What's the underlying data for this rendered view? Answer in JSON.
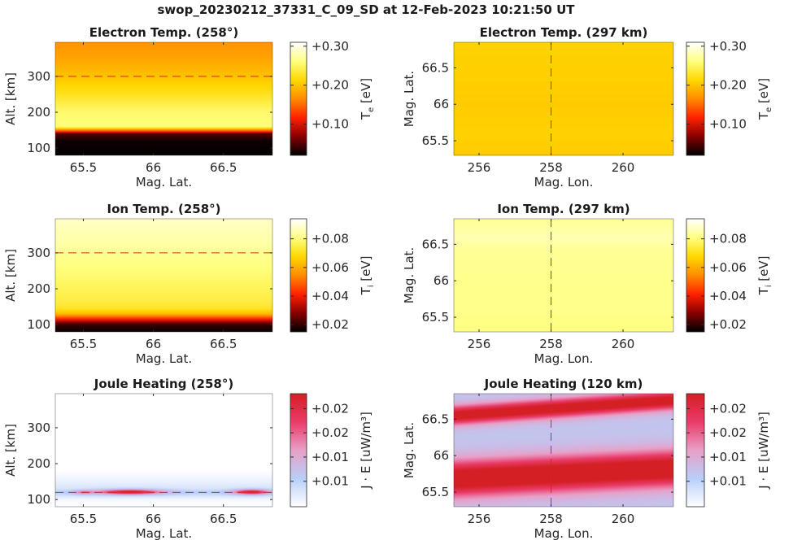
{
  "figure_title": "swop_20230212_37331_C_09_SD at 12-Feb-2023 10:21:50 UT",
  "colors": {
    "hot": [
      "#000000",
      "#8b0000",
      "#ff2200",
      "#ff8c00",
      "#ffd800",
      "#ffff80",
      "#ffffff"
    ],
    "joule": [
      "#ffffff",
      "#b8cff9",
      "#e8a0c8",
      "#ea3c6a",
      "#d41f24"
    ],
    "dashed_line": "#d62728",
    "axes": "#262626"
  },
  "chart_data": [
    {
      "id": "te-alt",
      "type": "heatmap",
      "title": "Electron Temp. (258°)",
      "xlabel": "Mag. Lat.",
      "ylabel": "Alt. [km]",
      "xlim": [
        65.3,
        66.85
      ],
      "ylim": [
        80,
        395
      ],
      "xticks": [
        65.5,
        66,
        66.5
      ],
      "xtick_labels": [
        "65.5",
        "66",
        "66.5"
      ],
      "yticks": [
        100,
        200,
        300
      ],
      "ytick_labels": [
        "100",
        "200",
        "300"
      ],
      "dashed_line": {
        "axis": "y",
        "value": 300
      },
      "colorbar": {
        "label_main": "T",
        "label_sub": "e",
        "label_unit": "[eV]",
        "range": [
          0.02,
          0.31
        ],
        "ticks": [
          0.1,
          0.2,
          0.3
        ],
        "tick_labels": [
          "+0.10",
          "+0.20",
          "+0.30"
        ],
        "cmap": "hot"
      },
      "rows": {
        "axis": "y",
        "coords": [
          80,
          120,
          140,
          150,
          160,
          200,
          250,
          300,
          350,
          395
        ],
        "values": [
          0.02,
          0.025,
          0.05,
          0.16,
          0.26,
          0.255,
          0.225,
          0.2,
          0.18,
          0.17
        ]
      }
    },
    {
      "id": "te-map",
      "type": "heatmap",
      "title": "Electron Temp. (297 km)",
      "xlabel": "Mag. Lon.",
      "ylabel": "Mag. Lat.",
      "xlim": [
        255.3,
        261.4
      ],
      "ylim": [
        65.3,
        66.85
      ],
      "xticks": [
        256,
        258,
        260
      ],
      "xtick_labels": [
        "256",
        "258",
        "260"
      ],
      "yticks": [
        65.5,
        66,
        66.5
      ],
      "ytick_labels": [
        "65.5",
        "66",
        "66.5"
      ],
      "dashed_line": {
        "axis": "x",
        "value": 258
      },
      "colorbar": {
        "label_main": "T",
        "label_sub": "e",
        "label_unit": "[eV]",
        "range": [
          0.02,
          0.31
        ],
        "ticks": [
          0.1,
          0.2,
          0.3
        ],
        "tick_labels": [
          "+0.10",
          "+0.20",
          "+0.30"
        ],
        "cmap": "hot"
      },
      "rows": {
        "axis": "y",
        "coords": [
          65.3,
          65.6,
          66.0,
          66.4,
          66.85
        ],
        "values": [
          0.205,
          0.21,
          0.205,
          0.208,
          0.21
        ]
      }
    },
    {
      "id": "ti-alt",
      "type": "heatmap",
      "title": "Ion Temp. (258°)",
      "xlabel": "Mag. Lat.",
      "ylabel": "Alt. [km]",
      "xlim": [
        65.3,
        66.85
      ],
      "ylim": [
        80,
        395
      ],
      "xticks": [
        65.5,
        66,
        66.5
      ],
      "xtick_labels": [
        "65.5",
        "66",
        "66.5"
      ],
      "yticks": [
        100,
        200,
        300
      ],
      "ytick_labels": [
        "100",
        "200",
        "300"
      ],
      "dashed_line": {
        "axis": "y",
        "value": 300
      },
      "colorbar": {
        "label_main": "T",
        "label_sub": "i",
        "label_unit": "[eV]",
        "range": [
          0.015,
          0.094
        ],
        "ticks": [
          0.02,
          0.04,
          0.06,
          0.08
        ],
        "tick_labels": [
          "+0.02",
          "+0.04",
          "+0.06",
          "+0.08"
        ],
        "cmap": "hot"
      },
      "rows": {
        "axis": "y",
        "coords": [
          80,
          100,
          115,
          130,
          145,
          160,
          200,
          250,
          300,
          350,
          395
        ],
        "values": [
          0.016,
          0.02,
          0.04,
          0.062,
          0.072,
          0.074,
          0.077,
          0.08,
          0.083,
          0.086,
          0.088
        ]
      }
    },
    {
      "id": "ti-map",
      "type": "heatmap",
      "title": "Ion Temp. (297 km)",
      "xlabel": "Mag. Lon.",
      "ylabel": "Mag. Lat.",
      "xlim": [
        255.3,
        261.4
      ],
      "ylim": [
        65.3,
        66.85
      ],
      "xticks": [
        256,
        258,
        260
      ],
      "xtick_labels": [
        "256",
        "258",
        "260"
      ],
      "yticks": [
        65.5,
        66,
        66.5
      ],
      "ytick_labels": [
        "65.5",
        "66",
        "66.5"
      ],
      "dashed_line": {
        "axis": "x",
        "value": 258
      },
      "colorbar": {
        "label_main": "T",
        "label_sub": "i",
        "label_unit": "[eV]",
        "range": [
          0.015,
          0.094
        ],
        "ticks": [
          0.02,
          0.04,
          0.06,
          0.08
        ],
        "tick_labels": [
          "+0.02",
          "+0.04",
          "+0.06",
          "+0.08"
        ],
        "cmap": "hot"
      },
      "rows": {
        "axis": "y",
        "coords": [
          65.3,
          65.6,
          66.0,
          66.4,
          66.6,
          66.85
        ],
        "values": [
          0.081,
          0.082,
          0.082,
          0.083,
          0.086,
          0.083
        ]
      }
    },
    {
      "id": "jh-alt",
      "type": "heatmap",
      "title": "Joule Heating (258°)",
      "xlabel": "Mag. Lat.",
      "ylabel": "Alt. [km]",
      "xlim": [
        65.3,
        66.85
      ],
      "ylim": [
        80,
        395
      ],
      "xticks": [
        65.5,
        66,
        66.5
      ],
      "xtick_labels": [
        "65.5",
        "66",
        "66.5"
      ],
      "yticks": [
        100,
        200,
        300
      ],
      "ytick_labels": [
        "100",
        "200",
        "300"
      ],
      "dashed_line": {
        "axis": "y",
        "value": 120
      },
      "colorbar": {
        "label_main": "J · E",
        "label_sub": "",
        "label_unit": "[uW/m³]",
        "range": [
          0.0,
          0.028
        ],
        "ticks": [
          0.0063,
          0.0123,
          0.0183,
          0.0243
        ],
        "tick_labels": [
          "+0.01",
          "+0.01",
          "+0.02",
          "+0.02"
        ],
        "cmap": "joule"
      },
      "rows": {
        "axis": "y",
        "coords": [
          80,
          100,
          110,
          120,
          130,
          150,
          180,
          395
        ],
        "values": [
          0.0,
          0.001,
          0.004,
          0.007,
          0.004,
          0.002,
          0.0,
          0.0
        ]
      },
      "hotspots": [
        {
          "x": 65.83,
          "y": 121,
          "sx": 0.16,
          "sy": 5,
          "amp": 0.022
        },
        {
          "x": 66.7,
          "y": 121,
          "sx": 0.09,
          "sy": 5,
          "amp": 0.021
        },
        {
          "x": 65.5,
          "y": 120,
          "sx": 0.05,
          "sy": 4,
          "amp": 0.009
        }
      ]
    },
    {
      "id": "jh-map",
      "type": "heatmap",
      "title": "Joule Heating (120 km)",
      "xlabel": "Mag. Lon.",
      "ylabel": "Mag. Lat.",
      "xlim": [
        255.3,
        261.4
      ],
      "ylim": [
        65.3,
        66.85
      ],
      "xticks": [
        256,
        258,
        260
      ],
      "xtick_labels": [
        "256",
        "258",
        "260"
      ],
      "yticks": [
        65.5,
        66,
        66.5
      ],
      "ytick_labels": [
        "65.5",
        "66",
        "66.5"
      ],
      "dashed_line": {
        "axis": "x",
        "value": 258
      },
      "colorbar": {
        "label_main": "J · E",
        "label_sub": "",
        "label_unit": "[uW/m³]",
        "range": [
          0.0,
          0.028
        ],
        "ticks": [
          0.0063,
          0.0123,
          0.0183,
          0.0243
        ],
        "tick_labels": [
          "+0.01",
          "+0.01",
          "+0.02",
          "+0.02"
        ],
        "cmap": "joule"
      },
      "bands": [
        {
          "center_start": 65.68,
          "center_end": 65.82,
          "width": 0.17,
          "amp": 0.024
        },
        {
          "center_start": 66.55,
          "center_end": 66.76,
          "width": 0.09,
          "amp": 0.022
        }
      ],
      "background": 0.0085,
      "floor": 0.004
    }
  ]
}
